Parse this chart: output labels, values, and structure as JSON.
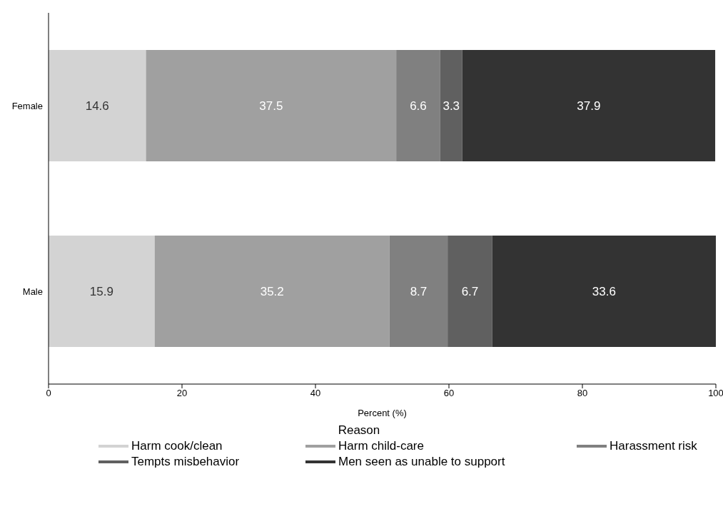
{
  "chart_data": {
    "type": "bar",
    "orientation": "horizontal",
    "stacked": true,
    "categories": [
      "Female",
      "Male"
    ],
    "series": [
      {
        "name": "Harm cook/clean",
        "color": "#d3d3d3",
        "values": [
          14.6,
          15.9
        ]
      },
      {
        "name": "Harm child-care",
        "color": "#a0a0a0",
        "values": [
          37.5,
          35.2
        ]
      },
      {
        "name": "Harassment risk",
        "color": "#808080",
        "values": [
          6.6,
          8.7
        ]
      },
      {
        "name": "Tempts misbehavior",
        "color": "#606060",
        "values": [
          3.3,
          6.7
        ]
      },
      {
        "name": "Men seen as unable to support",
        "color": "#333333",
        "values": [
          37.9,
          33.6
        ]
      }
    ],
    "xlim": [
      0,
      100
    ],
    "xticks": [
      0,
      20,
      40,
      60,
      80,
      100
    ],
    "xlabel": "Percent (%)",
    "legend_title": "Reason",
    "legend": "bottom",
    "data_labels": true,
    "grid": false
  }
}
